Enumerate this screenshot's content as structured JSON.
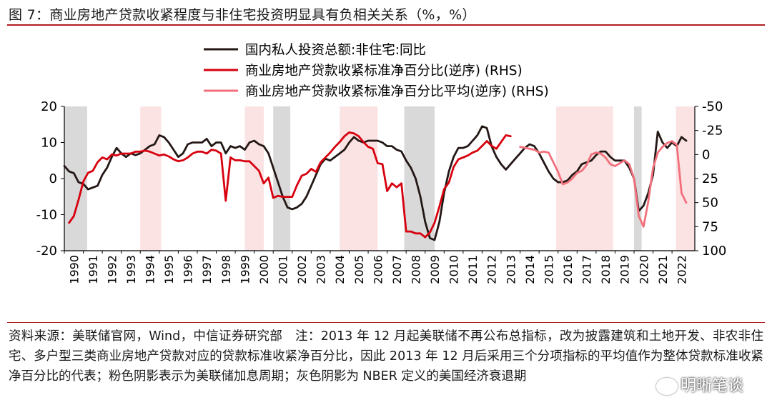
{
  "title": "图 7：商业房地产贷款收紧程度与非住宅投资明显具有负相关关系（%，%）",
  "footer": "资料来源：美联储官网，Wind，中信证券研究部　注：2013 年 12 月起美联储不再公布总指标，改为披露建筑和土地开发、非农非住宅、多户型三类商业房地产贷款对应的贷款标准收紧净百分比，因此 2013 年 12 月后采用三个分项指标的平均值作为整体贷款标准收紧净百分比的代表；粉色阴影表示为美联储加息周期；灰色阴影为 NBER 定义的美国经济衰退期",
  "watermark": "明晰笔谈",
  "chart_data": {
    "type": "line",
    "x_range": [
      1990,
      2023.2
    ],
    "x_ticks": [
      "1990",
      "1991",
      "1992",
      "1993",
      "1994",
      "1995",
      "1996",
      "1997",
      "1998",
      "1999",
      "2000",
      "2001",
      "2002",
      "2003",
      "2004",
      "2005",
      "2006",
      "2007",
      "2008",
      "2009",
      "2010",
      "2011",
      "2012",
      "2013",
      "2014",
      "2015",
      "2016",
      "2017",
      "2018",
      "2019",
      "2020",
      "2021",
      "2022"
    ],
    "y_left": {
      "min": -20,
      "max": 20,
      "ticks": [
        "20",
        "10",
        "0",
        "-10",
        "-20"
      ]
    },
    "y_right": {
      "min": -50,
      "max": 100,
      "inverted": true,
      "ticks": [
        "-50",
        "-25",
        "0",
        "25",
        "50",
        "75",
        "100"
      ]
    },
    "legend": [
      {
        "label": "国内私人投资总额:非住宅:同比",
        "color": "#231815"
      },
      {
        "label": "商业房地产贷款收紧标准净百分比(逆序) (RHS)",
        "color": "#d7000f"
      },
      {
        "label": "商业房地产贷款收紧标准净百分比平均(逆序) (RHS)",
        "color": "#f2707b"
      }
    ],
    "recession_periods": [
      [
        1990.0,
        1991.2
      ],
      [
        2001.0,
        2001.9
      ],
      [
        2007.9,
        2009.5
      ],
      [
        2020.0,
        2020.4
      ]
    ],
    "tightening_periods": [
      [
        1994.0,
        1995.1
      ],
      [
        1999.5,
        2000.5
      ],
      [
        2004.5,
        2006.5
      ],
      [
        2015.9,
        2018.9
      ],
      [
        2022.2,
        2023.2
      ]
    ],
    "series": [
      {
        "name": "国内私人投资总额:非住宅:同比",
        "axis": "left",
        "color": "#231815",
        "points": [
          [
            1990.0,
            3.5
          ],
          [
            1990.25,
            2
          ],
          [
            1990.5,
            1.5
          ],
          [
            1990.75,
            -1
          ],
          [
            1991.0,
            -1.5
          ],
          [
            1991.25,
            -3
          ],
          [
            1991.5,
            -2.5
          ],
          [
            1991.75,
            -2
          ],
          [
            1992.0,
            1
          ],
          [
            1992.25,
            3
          ],
          [
            1992.5,
            6
          ],
          [
            1992.75,
            8.5
          ],
          [
            1993.0,
            7
          ],
          [
            1993.25,
            6
          ],
          [
            1993.5,
            7
          ],
          [
            1993.75,
            6.5
          ],
          [
            1994.0,
            7
          ],
          [
            1994.25,
            8
          ],
          [
            1994.5,
            9
          ],
          [
            1994.75,
            9.5
          ],
          [
            1995.0,
            12
          ],
          [
            1995.25,
            11.5
          ],
          [
            1995.5,
            10
          ],
          [
            1995.75,
            8
          ],
          [
            1996.0,
            6
          ],
          [
            1996.25,
            7
          ],
          [
            1996.5,
            9.5
          ],
          [
            1996.75,
            10
          ],
          [
            1997.0,
            10
          ],
          [
            1997.25,
            10
          ],
          [
            1997.5,
            11
          ],
          [
            1997.75,
            9
          ],
          [
            1998.0,
            10
          ],
          [
            1998.25,
            10
          ],
          [
            1998.5,
            7
          ],
          [
            1998.75,
            9
          ],
          [
            1999.0,
            8.5
          ],
          [
            1999.25,
            9
          ],
          [
            1999.5,
            8
          ],
          [
            1999.75,
            10
          ],
          [
            2000.0,
            10.5
          ],
          [
            2000.25,
            9.5
          ],
          [
            2000.5,
            9
          ],
          [
            2000.75,
            7
          ],
          [
            2001.0,
            3
          ],
          [
            2001.25,
            -1
          ],
          [
            2001.5,
            -5
          ],
          [
            2001.75,
            -8
          ],
          [
            2002.0,
            -8.5
          ],
          [
            2002.25,
            -8
          ],
          [
            2002.5,
            -7
          ],
          [
            2002.75,
            -5
          ],
          [
            2003.0,
            -2
          ],
          [
            2003.25,
            1
          ],
          [
            2003.5,
            4
          ],
          [
            2003.75,
            5.5
          ],
          [
            2004.0,
            5
          ],
          [
            2004.25,
            6
          ],
          [
            2004.5,
            7
          ],
          [
            2004.75,
            8
          ],
          [
            2005.0,
            10
          ],
          [
            2005.25,
            11.5
          ],
          [
            2005.5,
            10.5
          ],
          [
            2005.75,
            10
          ],
          [
            2006.0,
            10.5
          ],
          [
            2006.25,
            10.5
          ],
          [
            2006.5,
            10.5
          ],
          [
            2006.75,
            10
          ],
          [
            2007.0,
            9
          ],
          [
            2007.25,
            9
          ],
          [
            2007.5,
            8
          ],
          [
            2007.75,
            7.5
          ],
          [
            2008.0,
            5
          ],
          [
            2008.25,
            3
          ],
          [
            2008.5,
            0
          ],
          [
            2008.75,
            -5
          ],
          [
            2009.0,
            -12
          ],
          [
            2009.25,
            -16.5
          ],
          [
            2009.5,
            -17
          ],
          [
            2009.75,
            -12
          ],
          [
            2010.0,
            -4
          ],
          [
            2010.25,
            2
          ],
          [
            2010.5,
            6
          ],
          [
            2010.75,
            8.5
          ],
          [
            2011.0,
            8.5
          ],
          [
            2011.25,
            9
          ],
          [
            2011.5,
            10.5
          ],
          [
            2011.75,
            12
          ],
          [
            2012.0,
            14.5
          ],
          [
            2012.25,
            14
          ],
          [
            2012.5,
            9
          ],
          [
            2012.75,
            6
          ],
          [
            2013.0,
            4
          ],
          [
            2013.25,
            2.5
          ],
          [
            2013.5,
            4
          ],
          [
            2013.75,
            5.5
          ],
          [
            2014.0,
            7
          ],
          [
            2014.25,
            8.5
          ],
          [
            2014.5,
            9.5
          ],
          [
            2014.75,
            9
          ],
          [
            2015.0,
            7
          ],
          [
            2015.25,
            4.5
          ],
          [
            2015.5,
            2
          ],
          [
            2015.75,
            0
          ],
          [
            2016.0,
            -1
          ],
          [
            2016.25,
            -1
          ],
          [
            2016.5,
            -0.5
          ],
          [
            2016.75,
            1
          ],
          [
            2017.0,
            2
          ],
          [
            2017.25,
            4
          ],
          [
            2017.5,
            4.5
          ],
          [
            2017.75,
            5
          ],
          [
            2018.0,
            6.5
          ],
          [
            2018.25,
            7.5
          ],
          [
            2018.5,
            7.5
          ],
          [
            2018.75,
            6
          ],
          [
            2019.0,
            5
          ],
          [
            2019.25,
            5
          ],
          [
            2019.5,
            5
          ],
          [
            2019.75,
            3
          ],
          [
            2020.0,
            0
          ],
          [
            2020.25,
            -9
          ],
          [
            2020.5,
            -7.5
          ],
          [
            2020.75,
            -4
          ],
          [
            2021.0,
            1
          ],
          [
            2021.25,
            13
          ],
          [
            2021.5,
            10
          ],
          [
            2021.75,
            8.5
          ],
          [
            2022.0,
            10
          ],
          [
            2022.25,
            9
          ],
          [
            2022.5,
            11.5
          ],
          [
            2022.75,
            10.5
          ]
        ]
      },
      {
        "name": "商业房地产贷款收紧标准净百分比(逆序) (RHS)",
        "axis": "right",
        "color": "#d7000f",
        "points": [
          [
            1990.25,
            71
          ],
          [
            1990.5,
            64
          ],
          [
            1990.75,
            47
          ],
          [
            1991.0,
            28
          ],
          [
            1991.25,
            19
          ],
          [
            1991.5,
            17
          ],
          [
            1991.75,
            8
          ],
          [
            1992.0,
            3
          ],
          [
            1992.25,
            5
          ],
          [
            1992.5,
            0
          ],
          [
            1992.75,
            1
          ],
          [
            1993.0,
            -1
          ],
          [
            1993.25,
            -1
          ],
          [
            1993.5,
            -1
          ],
          [
            1993.75,
            -3
          ],
          [
            1994.0,
            -3
          ],
          [
            1994.25,
            -4
          ],
          [
            1994.5,
            -3
          ],
          [
            1994.75,
            -1
          ],
          [
            1995.0,
            1
          ],
          [
            1995.25,
            0
          ],
          [
            1995.5,
            2
          ],
          [
            1995.75,
            5
          ],
          [
            1996.0,
            7
          ],
          [
            1996.25,
            6
          ],
          [
            1996.5,
            3
          ],
          [
            1996.75,
            -1
          ],
          [
            1997.0,
            -3
          ],
          [
            1997.25,
            -3
          ],
          [
            1997.5,
            -1
          ],
          [
            1997.75,
            -5
          ],
          [
            1998.0,
            -4
          ],
          [
            1998.25,
            -1
          ],
          [
            1998.5,
            48
          ],
          [
            1998.75,
            3
          ],
          [
            1999.0,
            6
          ],
          [
            1999.25,
            6
          ],
          [
            1999.5,
            7
          ],
          [
            1999.75,
            7
          ],
          [
            2000.0,
            12
          ],
          [
            2000.25,
            17
          ],
          [
            2000.5,
            30
          ],
          [
            2000.75,
            24
          ],
          [
            2001.0,
            45
          ],
          [
            2001.25,
            43
          ],
          [
            2001.5,
            44
          ],
          [
            2001.75,
            44
          ],
          [
            2002.0,
            44
          ],
          [
            2002.25,
            32
          ],
          [
            2002.5,
            22
          ],
          [
            2002.75,
            20
          ],
          [
            2003.0,
            15
          ],
          [
            2003.25,
            18
          ],
          [
            2003.5,
            8
          ],
          [
            2003.75,
            3
          ],
          [
            2004.0,
            -2
          ],
          [
            2004.25,
            -8
          ],
          [
            2004.5,
            -13
          ],
          [
            2004.75,
            -19
          ],
          [
            2005.0,
            -23
          ],
          [
            2005.25,
            -22
          ],
          [
            2005.5,
            -19
          ],
          [
            2005.75,
            -13
          ],
          [
            2006.0,
            -8
          ],
          [
            2006.25,
            -6
          ],
          [
            2006.5,
            9
          ],
          [
            2006.75,
            10
          ],
          [
            2007.0,
            38
          ],
          [
            2007.25,
            30
          ],
          [
            2007.5,
            34
          ],
          [
            2007.75,
            30
          ],
          [
            2008.0,
            80
          ],
          [
            2008.25,
            80
          ],
          [
            2008.5,
            82
          ],
          [
            2008.75,
            82
          ],
          [
            2009.0,
            86
          ],
          [
            2009.25,
            81
          ],
          [
            2009.5,
            71
          ],
          [
            2009.75,
            54
          ],
          [
            2010.0,
            36
          ],
          [
            2010.25,
            29
          ],
          [
            2010.5,
            13
          ],
          [
            2010.75,
            5
          ],
          [
            2011.0,
            3
          ],
          [
            2011.25,
            1
          ],
          [
            2011.5,
            -2
          ],
          [
            2011.75,
            -4
          ],
          [
            2012.0,
            -9
          ],
          [
            2012.25,
            -14
          ],
          [
            2012.5,
            -9
          ],
          [
            2012.75,
            -6
          ],
          [
            2013.0,
            -13
          ],
          [
            2013.25,
            -20
          ],
          [
            2013.5,
            -19
          ]
        ]
      },
      {
        "name": "商业房地产贷款收紧标准净百分比平均(逆序) (RHS)",
        "axis": "right",
        "color": "#f2707b",
        "points": [
          [
            2014.0,
            -8
          ],
          [
            2014.25,
            -7
          ],
          [
            2014.5,
            -6
          ],
          [
            2014.75,
            -5
          ],
          [
            2015.0,
            -2
          ],
          [
            2015.25,
            -3
          ],
          [
            2015.5,
            -2
          ],
          [
            2015.75,
            8
          ],
          [
            2016.0,
            18
          ],
          [
            2016.25,
            31
          ],
          [
            2016.5,
            29
          ],
          [
            2016.75,
            25
          ],
          [
            2017.0,
            19
          ],
          [
            2017.25,
            17
          ],
          [
            2017.5,
            11
          ],
          [
            2017.75,
            0
          ],
          [
            2018.0,
            -2
          ],
          [
            2018.25,
            -1
          ],
          [
            2018.5,
            3
          ],
          [
            2018.75,
            10
          ],
          [
            2019.0,
            12
          ],
          [
            2019.25,
            9
          ],
          [
            2019.5,
            6
          ],
          [
            2019.75,
            10
          ],
          [
            2020.0,
            25
          ],
          [
            2020.25,
            64
          ],
          [
            2020.5,
            75
          ],
          [
            2020.75,
            49
          ],
          [
            2021.0,
            14
          ],
          [
            2021.25,
            -2
          ],
          [
            2021.5,
            -8
          ],
          [
            2021.75,
            -12
          ],
          [
            2022.0,
            -14
          ],
          [
            2022.25,
            -10
          ],
          [
            2022.5,
            40
          ],
          [
            2022.75,
            50
          ]
        ]
      }
    ]
  }
}
